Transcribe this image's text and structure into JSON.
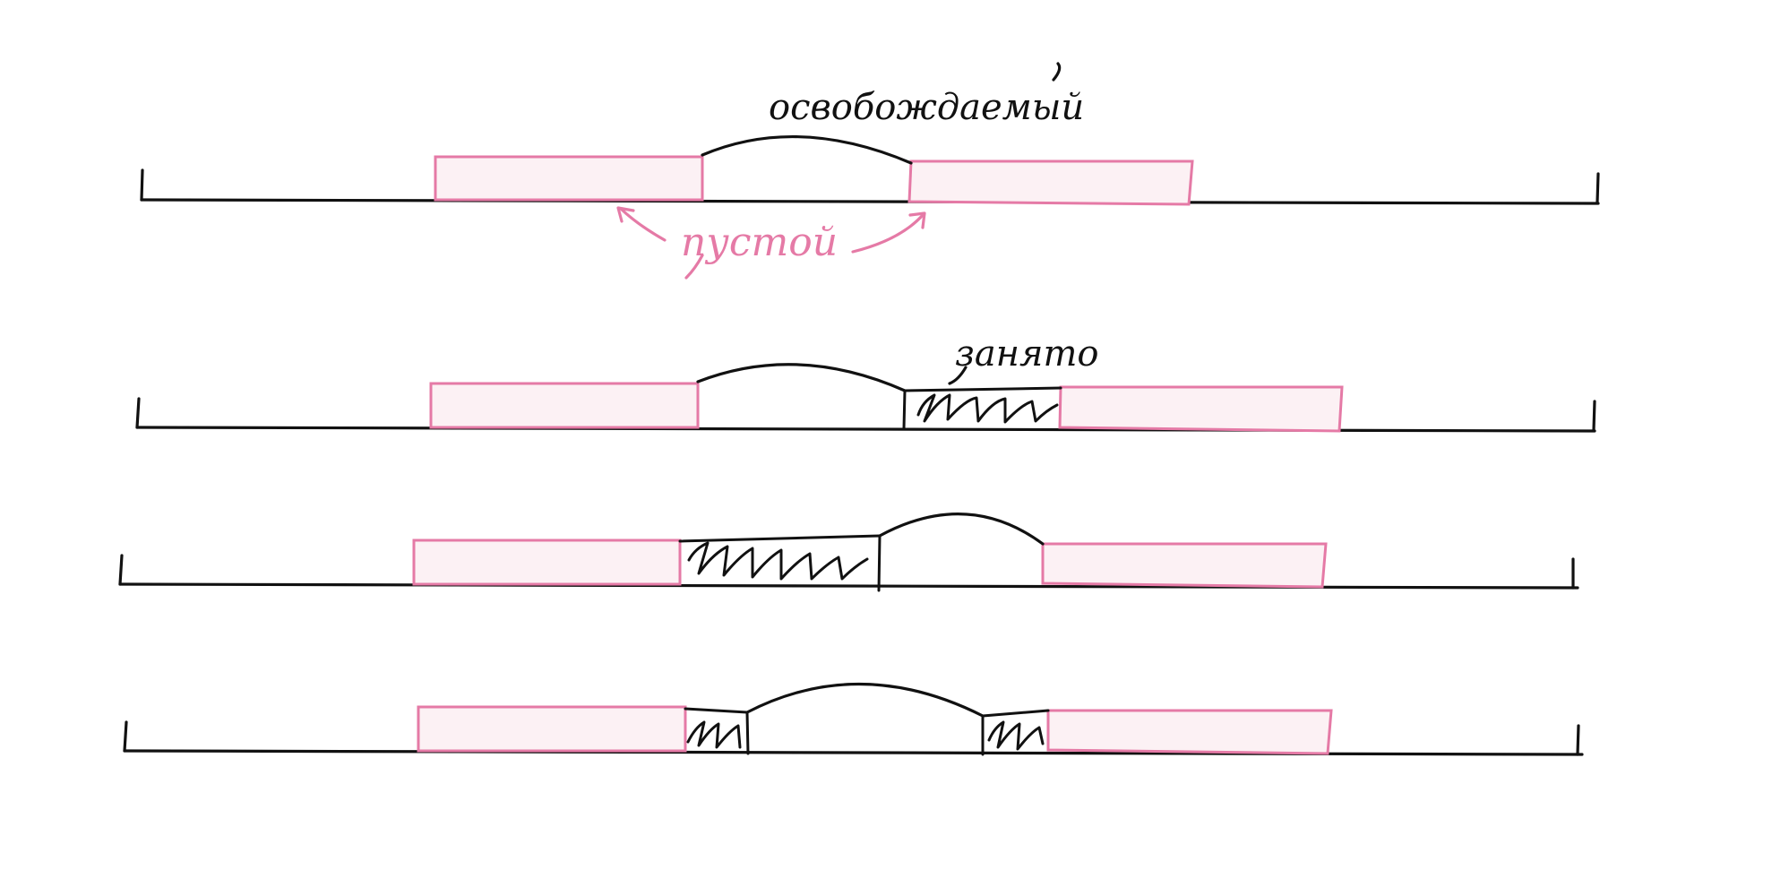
{
  "labels": {
    "freed": "освобождаемый",
    "empty": "пустой",
    "occupied": "занято"
  },
  "colors": {
    "ink": "#111111",
    "pink": "#e57aa6",
    "block_fill": "#fcf1f4",
    "background": "#ffffff"
  }
}
